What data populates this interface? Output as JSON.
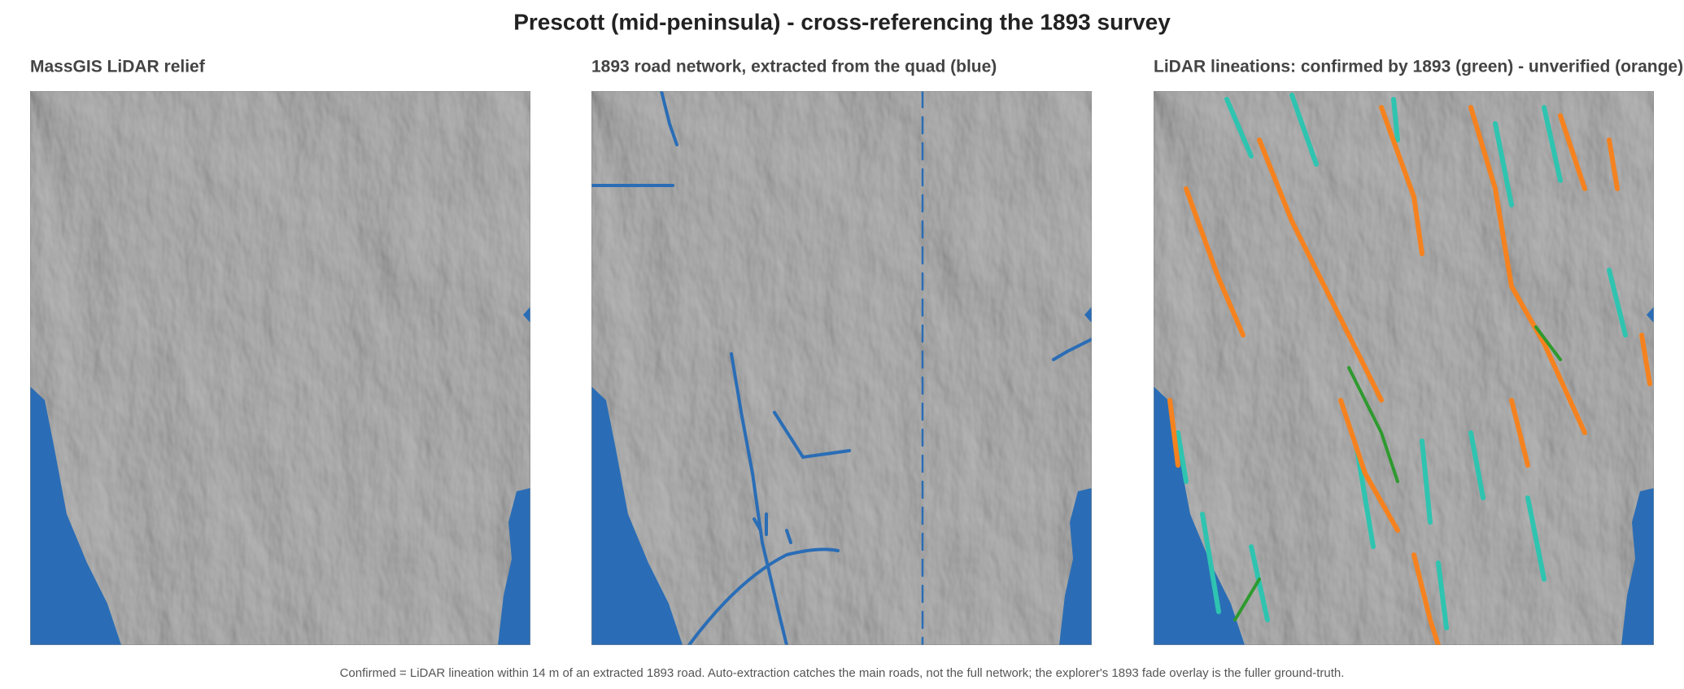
{
  "title": "Prescott (mid-peninsula) - cross-referencing the 1893 survey",
  "panels": [
    {
      "title": "MassGIS LiDAR relief"
    },
    {
      "title": "1893 road network, extracted from the quad (blue)"
    },
    {
      "title": "LiDAR lineations: confirmed by 1893 (green) - unverified (orange)"
    }
  ],
  "caption": "Confirmed = LiDAR lineation within 14 m of an extracted 1893 road. Auto-extraction catches the main roads, not the full network; the explorer's 1893 fade overlay is the fuller ground-truth."
}
